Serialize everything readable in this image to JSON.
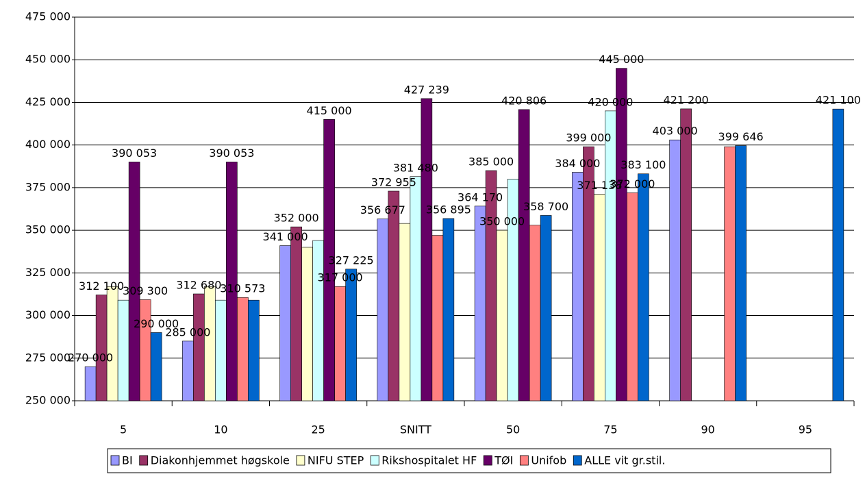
{
  "chart_data": {
    "type": "bar",
    "categories": [
      "5",
      "10",
      "25",
      "SNITT",
      "50",
      "75",
      "90",
      "95"
    ],
    "series": [
      {
        "name": "BI",
        "color": "#9999ff",
        "values": [
          270000,
          285000,
          341000,
          356677,
          364170,
          384000,
          403000,
          null
        ],
        "value_labels": [
          "270 000",
          "285 000",
          "341 000",
          "356 677",
          "364 170",
          "384 000",
          "403 000",
          null
        ]
      },
      {
        "name": "Diakonhjemmet høgskole",
        "color": "#993366",
        "values": [
          312100,
          312680,
          352000,
          372955,
          385000,
          399000,
          421200,
          null
        ],
        "value_labels": [
          "312 100",
          "312 680",
          "352 000",
          "372 955",
          "385 000",
          "399 000",
          "421 200",
          null
        ]
      },
      {
        "name": "NIFU STEP",
        "color": "#ffffcc",
        "values": [
          317000,
          317000,
          340000,
          354000,
          350000,
          371138,
          null,
          null
        ],
        "value_labels": [
          null,
          null,
          null,
          null,
          "350 000",
          "371 138",
          null,
          null
        ]
      },
      {
        "name": "Rikshospitalet HF",
        "color": "#ccffff",
        "values": [
          309000,
          309000,
          344000,
          381480,
          380000,
          420000,
          null,
          null
        ],
        "value_labels": [
          null,
          null,
          null,
          "381 480",
          null,
          "420 000",
          null,
          null
        ]
      },
      {
        "name": "TØI",
        "color": "#660066",
        "values": [
          390053,
          390053,
          415000,
          427239,
          420806,
          445000,
          null,
          null
        ],
        "value_labels": [
          "390 053",
          "390 053",
          "415 000",
          "427 239",
          "420 806",
          "445 000",
          null,
          null
        ]
      },
      {
        "name": "Unifob",
        "color": "#ff8080",
        "values": [
          309300,
          310573,
          317000,
          347000,
          353000,
          372000,
          399000,
          null
        ],
        "value_labels": [
          "309 300",
          "310 573",
          "317 000",
          null,
          null,
          "372 000",
          null,
          null
        ]
      },
      {
        "name": "ALLE vit gr.stil.",
        "color": "#0066cc",
        "values": [
          290000,
          309000,
          327225,
          356895,
          358700,
          383100,
          399646,
          421100
        ],
        "value_labels": [
          "290 000",
          null,
          "327 225",
          "356 895",
          "358 700",
          "383 100",
          "399 646",
          "421 100"
        ]
      }
    ],
    "ylim": [
      250000,
      475000
    ],
    "yticks": [
      {
        "value": 250000,
        "label": "250 000"
      },
      {
        "value": 275000,
        "label": "275 000"
      },
      {
        "value": 300000,
        "label": "300 000"
      },
      {
        "value": 325000,
        "label": "325 000"
      },
      {
        "value": 350000,
        "label": "350 000"
      },
      {
        "value": 375000,
        "label": "375 000"
      },
      {
        "value": 400000,
        "label": "400 000"
      },
      {
        "value": 425000,
        "label": "425 000"
      },
      {
        "value": 450000,
        "label": "450 000"
      },
      {
        "value": 475000,
        "label": "475 000"
      }
    ],
    "grid": true,
    "legend": "bottom"
  }
}
